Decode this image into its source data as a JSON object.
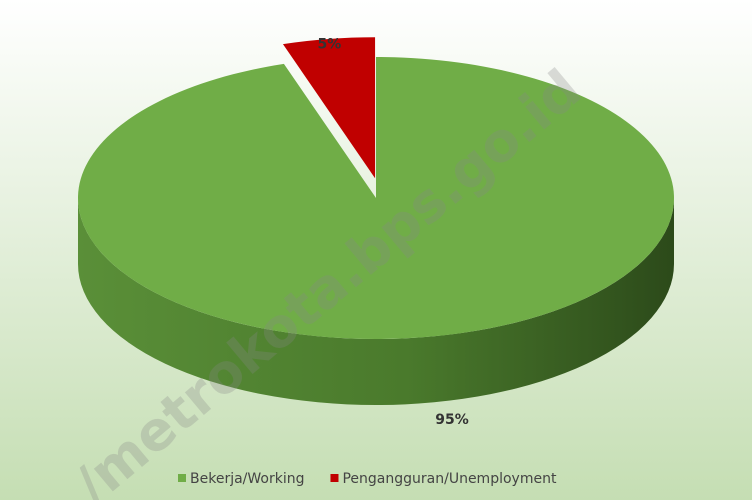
{
  "chart_data": {
    "type": "pie",
    "categories": [
      "Bekerja/Working",
      "Pengangguran/Unemployment"
    ],
    "values": [
      95,
      5
    ],
    "value_labels": [
      "95%",
      "5%"
    ],
    "colors": [
      "#70ad47",
      "#c00000"
    ],
    "legend": "bottom"
  },
  "watermark": "/metrokota.bps.go.id"
}
